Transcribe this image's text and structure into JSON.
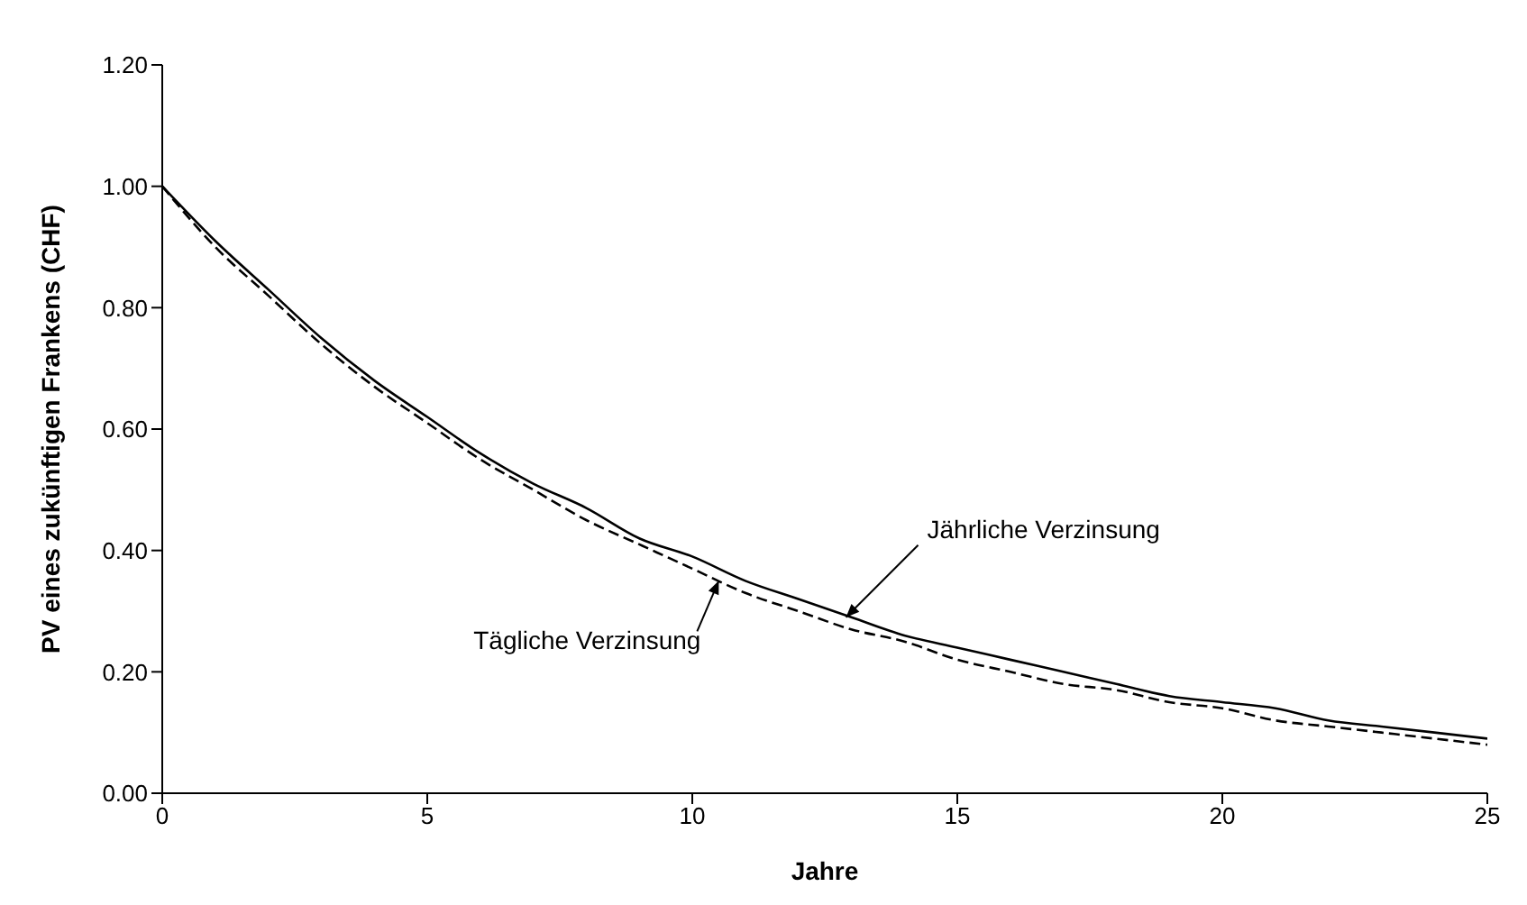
{
  "chart_data": {
    "type": "line",
    "xlabel": "Jahre",
    "ylabel": "PV eines zukünftigen Frankens (CHF)",
    "x": [
      0,
      1,
      2,
      3,
      4,
      5,
      6,
      7,
      8,
      9,
      10,
      11,
      12,
      13,
      14,
      15,
      16,
      17,
      18,
      19,
      20,
      21,
      22,
      23,
      24,
      25
    ],
    "series": [
      {
        "color": "#000000",
        "line_style": "solid",
        "values": [
          1,
          0.91,
          0.83,
          0.75,
          0.68,
          0.62,
          0.56,
          0.51,
          0.47,
          0.42,
          0.39,
          0.35,
          0.32,
          0.29,
          0.26,
          0.24,
          0.22,
          0.2,
          0.18,
          0.16,
          0.15,
          0.14,
          0.12,
          0.11,
          0.1,
          0.09
        ]
      },
      {
        "color": "#000000",
        "line_style": "dashed",
        "values": [
          1,
          0.9,
          0.82,
          0.74,
          0.67,
          0.61,
          0.55,
          0.5,
          0.45,
          0.41,
          0.37,
          0.33,
          0.3,
          0.27,
          0.25,
          0.22,
          0.2,
          0.18,
          0.17,
          0.15,
          0.14,
          0.12,
          0.11,
          0.1,
          0.09,
          0.08
        ]
      }
    ],
    "xlim": [
      0,
      25
    ],
    "xticks": [
      0,
      5,
      10,
      15,
      20,
      25
    ],
    "ylim": [
      0,
      1.2
    ],
    "yticks": [
      {
        "value": 0,
        "label": "0.00"
      },
      {
        "value": 0.2,
        "label": "0.20"
      },
      {
        "value": 0.4,
        "label": "0.40"
      },
      {
        "value": 0.6,
        "label": "0.60"
      },
      {
        "value": 0.8,
        "label": "0.80"
      },
      {
        "value": 1,
        "label": "1.00"
      },
      {
        "value": 1.2,
        "label": "1.20"
      }
    ],
    "annotations": [
      {
        "text": "Jährliche Verzinsung",
        "x": 12.9,
        "y": 0.29
      },
      {
        "text": "Tägliche Verzinsung",
        "x": 10.5,
        "y": 0.35
      }
    ],
    "marker": "none",
    "grid": false,
    "legend": false
  }
}
